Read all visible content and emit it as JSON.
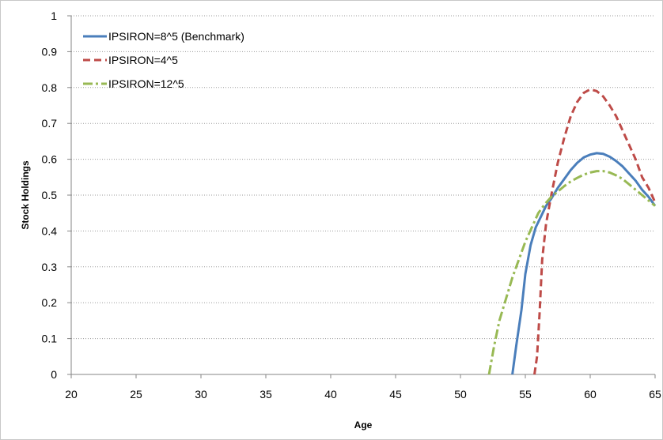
{
  "chart_data": {
    "type": "line",
    "title": "",
    "xlabel": "Age",
    "ylabel": "Stock Holdings",
    "xlim": [
      20,
      65
    ],
    "ylim": [
      0,
      1
    ],
    "x_ticks": [
      "20",
      "25",
      "30",
      "35",
      "40",
      "45",
      "50",
      "55",
      "60",
      "65"
    ],
    "y_ticks": [
      "0",
      "0.1",
      "0.2",
      "0.3",
      "0.4",
      "0.5",
      "0.6",
      "0.7",
      "0.8",
      "0.9",
      "1"
    ],
    "grid": "horizontal dotted",
    "legend_position": "top-left",
    "series": [
      {
        "name": "IPSIRON=8^5 (Benchmark)",
        "color": "#4a7ebb",
        "dash": "solid",
        "x": [
          54.0,
          54.3,
          54.7,
          55.0,
          55.4,
          55.8,
          56.2,
          56.6,
          57.0,
          57.5,
          58.0,
          58.5,
          59.0,
          59.5,
          60.0,
          60.5,
          61.0,
          61.5,
          62.0,
          62.5,
          63.0,
          63.5,
          64.0,
          64.5,
          65.0
        ],
        "y": [
          0.0,
          0.08,
          0.18,
          0.28,
          0.36,
          0.41,
          0.44,
          0.47,
          0.49,
          0.52,
          0.545,
          0.57,
          0.59,
          0.605,
          0.613,
          0.617,
          0.615,
          0.607,
          0.595,
          0.58,
          0.56,
          0.54,
          0.515,
          0.495,
          0.47
        ]
      },
      {
        "name": "IPSIRON=4^5",
        "color": "#be4b48",
        "dash": "dashed",
        "x": [
          55.7,
          55.9,
          56.1,
          56.3,
          56.6,
          57.0,
          57.5,
          58.0,
          58.5,
          59.0,
          59.5,
          60.0,
          60.5,
          61.0,
          61.5,
          62.0,
          62.5,
          63.0,
          63.5,
          64.0,
          64.5,
          65.0
        ],
        "y": [
          0.0,
          0.05,
          0.17,
          0.32,
          0.42,
          0.5,
          0.59,
          0.66,
          0.72,
          0.76,
          0.785,
          0.795,
          0.79,
          0.775,
          0.75,
          0.72,
          0.68,
          0.64,
          0.6,
          0.55,
          0.52,
          0.48
        ]
      },
      {
        "name": "IPSIRON=12^5",
        "color": "#98b954",
        "dash": "dash-dot",
        "x": [
          52.2,
          52.6,
          53.0,
          53.5,
          54.0,
          54.5,
          55.0,
          55.5,
          56.0,
          56.5,
          57.0,
          57.5,
          58.0,
          58.5,
          59.0,
          59.5,
          60.0,
          60.5,
          61.0,
          61.5,
          62.0,
          62.5,
          63.0,
          63.5,
          64.0,
          64.5,
          65.0
        ],
        "y": [
          0.0,
          0.08,
          0.15,
          0.21,
          0.27,
          0.32,
          0.37,
          0.41,
          0.45,
          0.475,
          0.495,
          0.51,
          0.525,
          0.538,
          0.548,
          0.557,
          0.563,
          0.567,
          0.567,
          0.563,
          0.555,
          0.545,
          0.53,
          0.515,
          0.5,
          0.485,
          0.47
        ]
      }
    ]
  }
}
